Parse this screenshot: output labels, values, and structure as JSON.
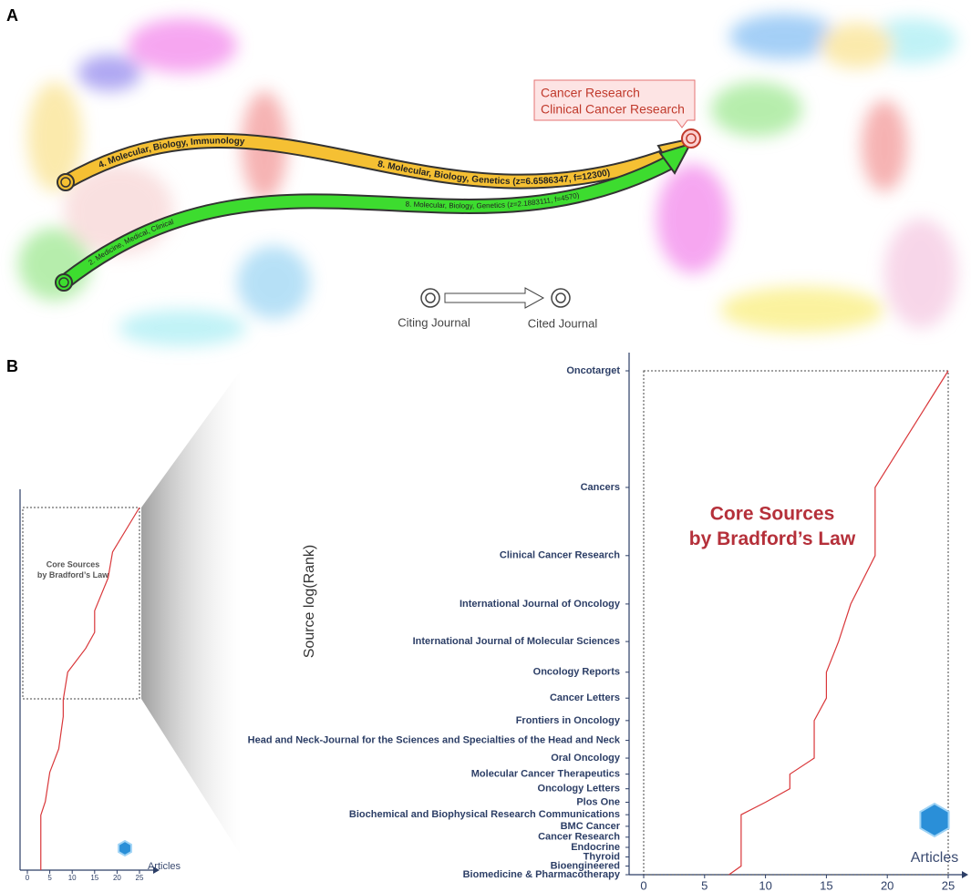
{
  "panel_labels": [
    "A",
    "B"
  ],
  "overlay": {
    "links": [
      {
        "citing_label": "4. Molecular, Biology, Immunology",
        "cited_label": "8. Molecular, Biology, Genetics (z=6.6586347, f=12300)",
        "color": "#f5c033"
      },
      {
        "citing_label": "2. Medicine, Medical, Clinical",
        "cited_label": "8. Molecular, Biology, Genetics (z=2.1883111, f=4570)",
        "color": "#3ddc2f"
      }
    ],
    "callout": [
      "Cancer Research",
      "Clinical Cancer Research"
    ],
    "legend": [
      "Citing Journal",
      "Cited Journal"
    ]
  },
  "chart_data": [
    {
      "type": "line",
      "x_label": "Articles",
      "annotation": [
        "Core Sources",
        "by Bradford’s Law"
      ],
      "ranks": [
        1,
        2,
        3,
        5,
        7,
        9,
        13,
        20,
        26,
        43,
        62,
        98,
        121,
        285
      ],
      "values": [
        25,
        19,
        18,
        15,
        15,
        13,
        9,
        8,
        8,
        7,
        5,
        4,
        3,
        3
      ],
      "color": "#d9373a",
      "xlim": [
        0,
        25
      ],
      "xticks": [
        0,
        5,
        10,
        15,
        20,
        25
      ],
      "y_scale": "log",
      "ylim": [
        1,
        285
      ]
    },
    {
      "type": "line",
      "y_label": "Source log(Rank)",
      "x_label": "Articles",
      "annotation": [
        "Core Sources",
        "by Bradford’s Law"
      ],
      "categories": [
        "Oncotarget",
        "Cancers",
        "Clinical Cancer Research",
        "International Journal of Oncology",
        "International Journal of Molecular Sciences",
        "Oncology Reports",
        "Cancer Letters",
        "Frontiers in Oncology",
        "Head and Neck-Journal for the Sciences and Specialties of the Head and Neck",
        "Oral Oncology",
        "Molecular Cancer Therapeutics",
        "Oncology Letters",
        "Plos One",
        "Biochemical and Biophysical Research Communications",
        "BMC Cancer",
        "Cancer Research",
        "Endocrine",
        "Thyroid",
        "Bioengineered",
        "Biomedicine & Pharmacotherapy"
      ],
      "values": [
        25,
        19,
        19,
        17,
        16,
        15,
        15,
        14,
        14,
        14,
        12,
        12,
        10,
        8,
        8,
        8,
        8,
        8,
        8,
        7
      ],
      "color": "#d9373a",
      "xlim": [
        0,
        25
      ],
      "xticks": [
        0,
        5,
        10,
        15,
        20,
        25
      ],
      "y_scale": "log"
    }
  ]
}
